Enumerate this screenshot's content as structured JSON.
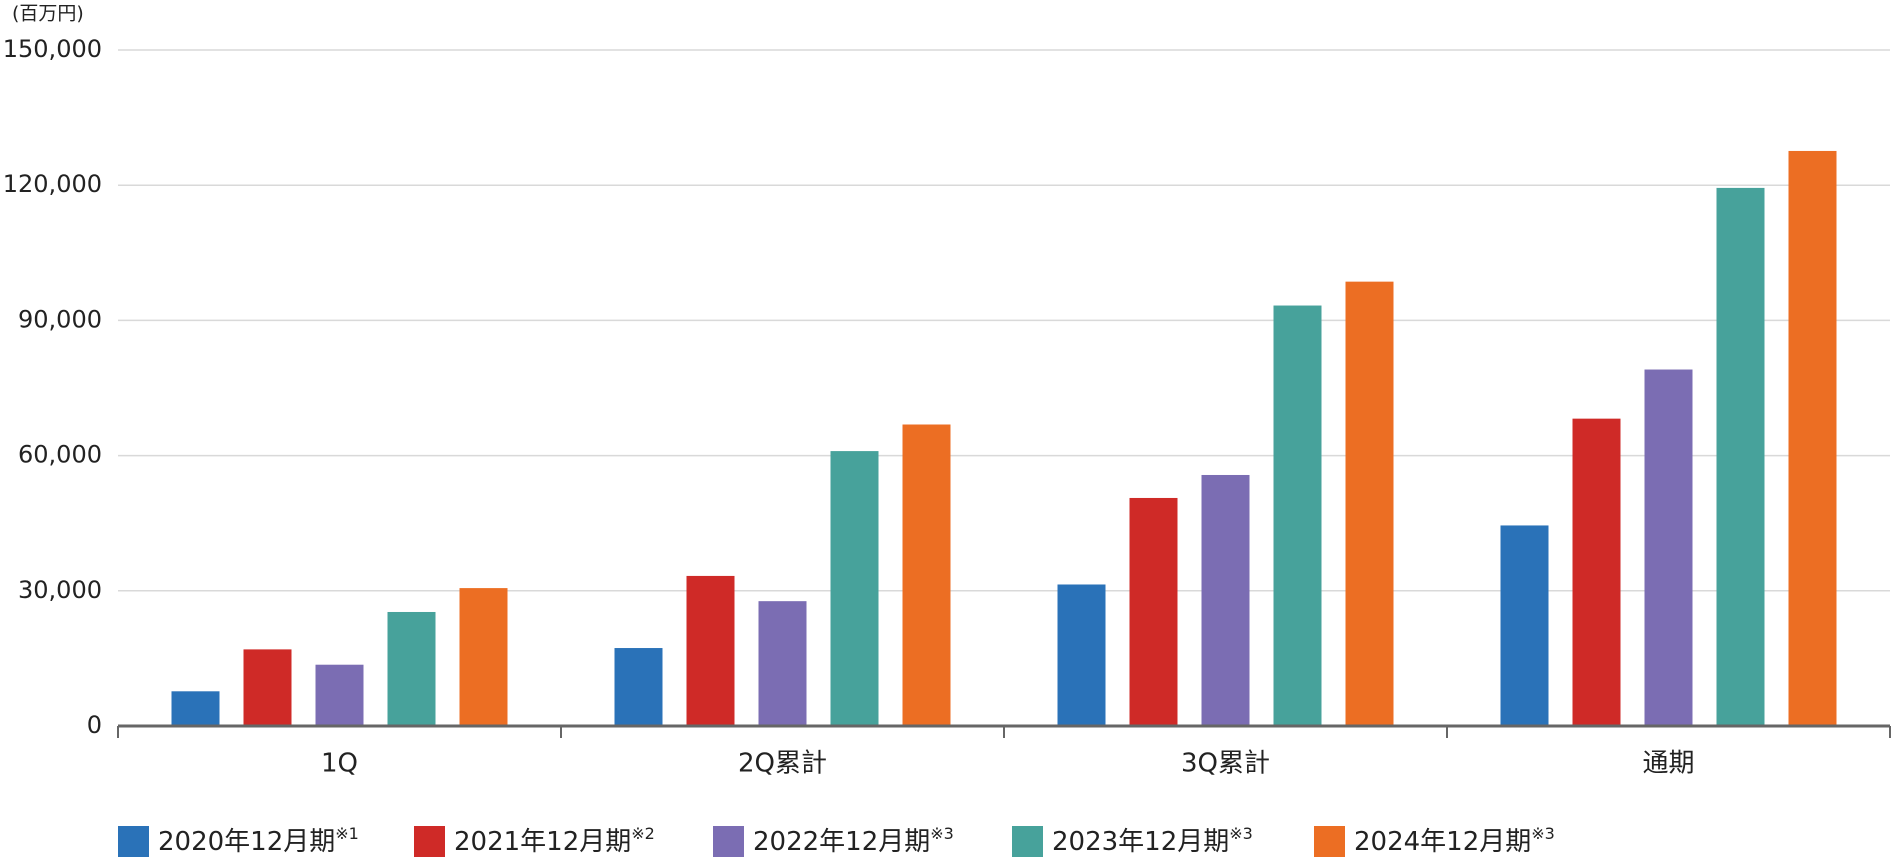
{
  "chart_data": {
    "type": "bar",
    "unit_label": "(百万円)",
    "categories": [
      "1Q",
      "2Q累計",
      "3Q累計",
      "通期"
    ],
    "series": [
      {
        "name": "2020年12月期",
        "note": "※1",
        "color": "#2a72b8",
        "values": [
          7700,
          17300,
          31400,
          44500
        ]
      },
      {
        "name": "2021年12月期",
        "note": "※2",
        "color": "#cf2a27",
        "values": [
          17000,
          33300,
          50600,
          68200
        ]
      },
      {
        "name": "2022年12月期",
        "note": "※3",
        "color": "#7b6db3",
        "values": [
          13600,
          27700,
          55700,
          79100
        ]
      },
      {
        "name": "2023年12月期",
        "note": "※3",
        "color": "#47a29b",
        "values": [
          25300,
          61000,
          93300,
          119400
        ]
      },
      {
        "name": "2024年12月期",
        "note": "※3",
        "color": "#ec6e23",
        "values": [
          30600,
          66900,
          98600,
          127600
        ]
      }
    ],
    "ylim": [
      0,
      150000
    ],
    "yticks": [
      0,
      {
        "value": 30000,
        "label": "30,000"
      },
      {
        "value": 60000,
        "label": "60,000"
      },
      {
        "value": 90000,
        "label": "90,000"
      },
      {
        "value": 120000,
        "label": "120,000"
      },
      {
        "value": 150000,
        "label": "150,000"
      }
    ],
    "grid": true
  }
}
